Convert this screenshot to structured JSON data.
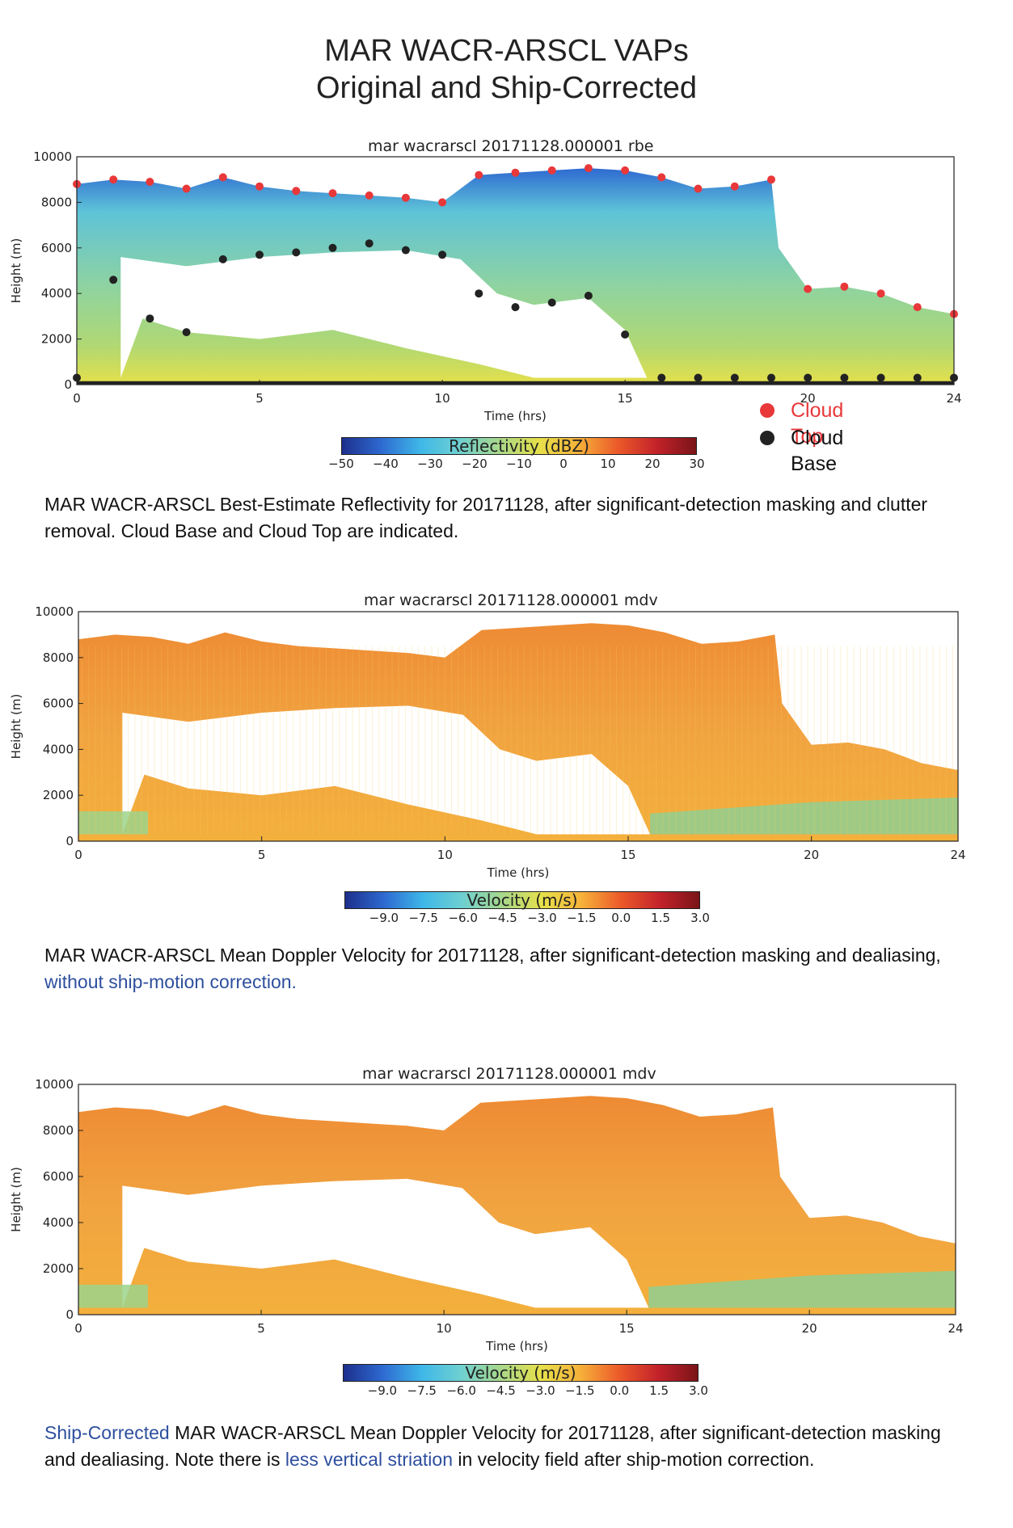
{
  "page_title": [
    "MAR WACR-ARSCL VAPs",
    "Original and Ship-Corrected"
  ],
  "colors": {
    "cloud_top": "#e8383a",
    "cloud_base": "#222222",
    "caption_highlight": "#2e4f9e",
    "colormap": [
      "#1d2f8c",
      "#2e6ad1",
      "#3fb8e8",
      "#6fd0d0",
      "#a8d88a",
      "#e6e04a",
      "#f6b23a",
      "#ec5a2a",
      "#c3222a",
      "#7a1418"
    ]
  },
  "legend": {
    "cloud_top": "Cloud Top",
    "cloud_base": "Cloud Base"
  },
  "chart_data": [
    {
      "type": "heatmap",
      "title": "mar wacrarscl 20171128.000001  rbe",
      "xlabel": "Time (hrs)",
      "ylabel": "Height (m)",
      "xlim": [
        0,
        24
      ],
      "ylim": [
        0,
        10000
      ],
      "xticks": [
        "0",
        "5",
        "10",
        "15",
        "20",
        "24"
      ],
      "yticks": [
        "0",
        "2000",
        "4000",
        "6000",
        "8000",
        "10000"
      ],
      "colorbar": {
        "label": "Reflectivity (dBZ)",
        "range": [
          -50,
          30
        ],
        "ticks": [
          "−50",
          "−40",
          "−30",
          "−20",
          "−10",
          "0",
          "10",
          "20",
          "30"
        ]
      },
      "field": "Best-Estimate Reflectivity",
      "overlays": [
        "Cloud Top",
        "Cloud Base"
      ],
      "series": [
        {
          "name": "Cloud Top",
          "x": [
            0,
            1,
            2,
            3,
            4,
            5,
            6,
            7,
            8,
            9,
            10,
            11,
            12,
            13,
            14,
            15,
            16,
            17,
            18,
            19,
            20,
            21,
            22,
            23,
            24
          ],
          "y": [
            8800,
            9000,
            8900,
            8600,
            9100,
            8700,
            8500,
            8400,
            8300,
            8200,
            8000,
            9200,
            9300,
            9400,
            9500,
            9400,
            9100,
            8600,
            8700,
            9000,
            4200,
            4300,
            4000,
            3400,
            3100
          ]
        },
        {
          "name": "Cloud Base",
          "x": [
            0,
            1,
            2,
            3,
            4,
            5,
            6,
            7,
            8,
            9,
            10,
            11,
            12,
            13,
            14,
            15,
            16,
            17,
            18,
            19,
            20,
            21,
            22,
            23,
            24
          ],
          "y": [
            300,
            4600,
            2900,
            2300,
            5500,
            5700,
            5800,
            6000,
            6200,
            5900,
            5700,
            4000,
            3400,
            3600,
            3900,
            2200,
            300,
            300,
            300,
            300,
            300,
            300,
            300,
            300,
            300
          ]
        }
      ]
    },
    {
      "type": "heatmap",
      "title": "mar wacrarscl 20171128.000001  mdv",
      "xlabel": "Time (hrs)",
      "ylabel": "Height (m)",
      "xlim": [
        0,
        24
      ],
      "ylim": [
        0,
        10000
      ],
      "xticks": [
        "0",
        "5",
        "10",
        "15",
        "20",
        "24"
      ],
      "yticks": [
        "0",
        "2000",
        "4000",
        "6000",
        "8000",
        "10000"
      ],
      "colorbar": {
        "label": "Velocity (m/s)",
        "range": [
          -10.5,
          3.0
        ],
        "ticks": [
          "−9.0",
          "−7.5",
          "−6.0",
          "−4.5",
          "−3.0",
          "−1.5",
          "0.0",
          "1.5",
          "3.0"
        ]
      },
      "field": "Mean Doppler Velocity (without ship-motion correction)"
    },
    {
      "type": "heatmap",
      "title": "mar wacrarscl 20171128.000001  mdv",
      "xlabel": "Time (hrs)",
      "ylabel": "Height (m)",
      "xlim": [
        0,
        24
      ],
      "ylim": [
        0,
        10000
      ],
      "xticks": [
        "0",
        "5",
        "10",
        "15",
        "20",
        "24"
      ],
      "yticks": [
        "0",
        "2000",
        "4000",
        "6000",
        "8000",
        "10000"
      ],
      "colorbar": {
        "label": "Velocity (m/s)",
        "range": [
          -10.5,
          3.0
        ],
        "ticks": [
          "−9.0",
          "−7.5",
          "−6.0",
          "−4.5",
          "−3.0",
          "−1.5",
          "0.0",
          "1.5",
          "3.0"
        ]
      },
      "field": "Ship-Corrected Mean Doppler Velocity"
    }
  ],
  "captions": {
    "c1": "MAR WACR-ARSCL Best-Estimate Reflectivity for 20171128, after significant-detection masking and clutter removal. Cloud Base and Cloud Top are indicated.",
    "c2_main": "MAR WACR-ARSCL Mean Doppler Velocity for 20171128, after significant-detection masking and dealiasing, ",
    "c2_highlight": "without ship-motion correction.",
    "c3_highlight1": "Ship-Corrected",
    "c3_main1": " MAR WACR-ARSCL Mean Doppler Velocity for 20171128, after significant-detection masking and dealiasing.  Note there is ",
    "c3_highlight2": "less vertical striation",
    "c3_main2": " in velocity field after ship-motion correction."
  }
}
